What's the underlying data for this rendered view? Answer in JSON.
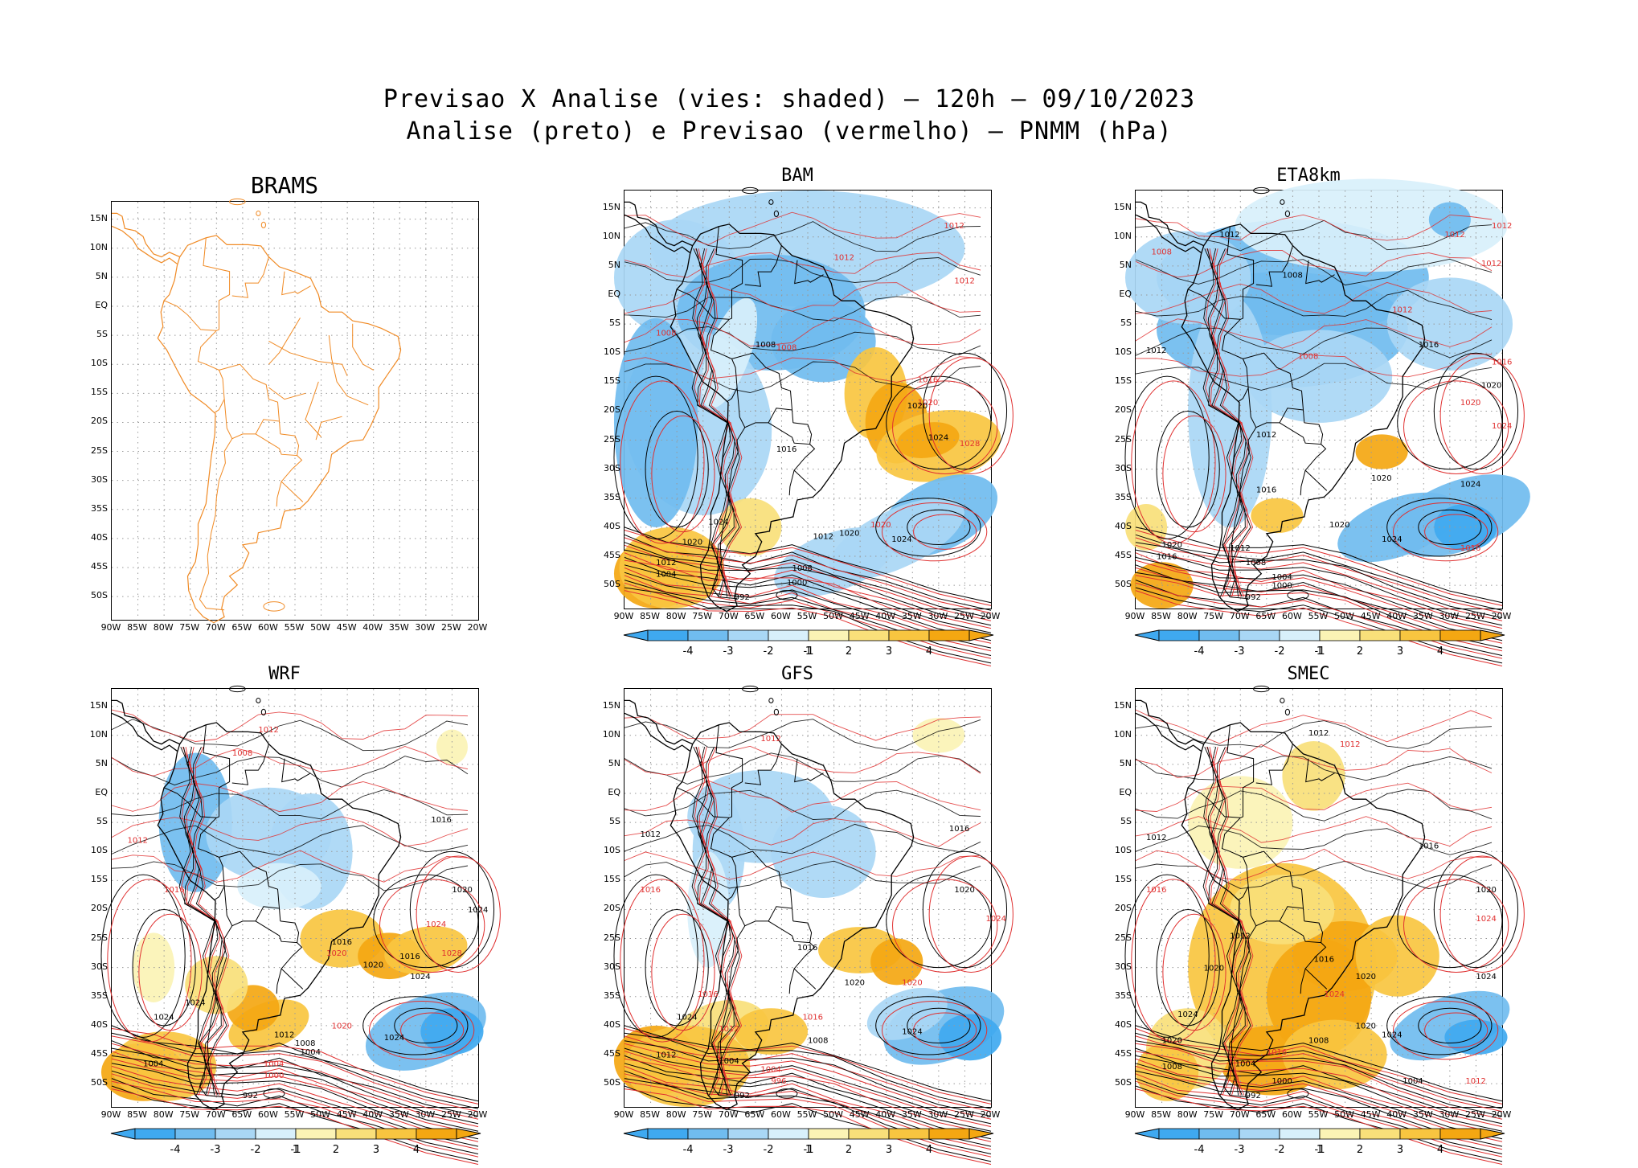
{
  "title_line1": "Previsao X Analise (vies: shaded) – 120h – 09/10/2023",
  "title_line2": "Analise (preto) e Previsao (vermelho) – PNMM (hPa)",
  "lat_labels": [
    "15N",
    "10N",
    "5N",
    "EQ",
    "5S",
    "10S",
    "15S",
    "20S",
    "25S",
    "30S",
    "35S",
    "40S",
    "45S",
    "50S"
  ],
  "lon_labels": [
    "90W",
    "85W",
    "80W",
    "75W",
    "70W",
    "65W",
    "60W",
    "55W",
    "50W",
    "45W",
    "40W",
    "35W",
    "30W",
    "25W",
    "20W"
  ],
  "colorbar_labels": [
    "-4",
    "-3",
    "-2",
    "-1",
    "1",
    "2",
    "3",
    "4"
  ],
  "colors": {
    "neg4": "#3fa9f0",
    "neg3": "#70bcef",
    "neg2": "#a9d7f5",
    "neg1": "#d8f0fb",
    "pos1": "#fbf3b5",
    "pos2": "#f9e07a",
    "pos3": "#f8c540",
    "pos4": "#f4a712",
    "analysis_contour": "#000000",
    "forecast_contour": "#e03030",
    "coast_brams": "#f08a24"
  },
  "panels": [
    {
      "name": "BRAMS",
      "bias": "none",
      "labels": []
    },
    {
      "name": "BAM",
      "bias": "mixed",
      "labels": [
        {
          "t": "1012",
          "c": "r",
          "lon": -29,
          "lat": 11.5
        },
        {
          "t": "1012",
          "c": "r",
          "lon": -50,
          "lat": 6
        },
        {
          "t": "1012",
          "c": "r",
          "lon": -27,
          "lat": 2
        },
        {
          "t": "1008",
          "c": "r",
          "lon": -61,
          "lat": -9.5
        },
        {
          "t": "1016",
          "c": "r",
          "lon": -34,
          "lat": -15
        },
        {
          "t": "1020",
          "c": "r",
          "lon": -34,
          "lat": -19
        },
        {
          "t": "1020",
          "c": "k",
          "lon": -36,
          "lat": -19.5
        },
        {
          "t": "1024",
          "c": "k",
          "lon": -32,
          "lat": -25
        },
        {
          "t": "1028",
          "c": "r",
          "lon": -26,
          "lat": -26
        },
        {
          "t": "1020",
          "c": "r",
          "lon": -43,
          "lat": -40
        },
        {
          "t": "1024",
          "c": "k",
          "lon": -39,
          "lat": -42.5
        },
        {
          "t": "1020",
          "c": "k",
          "lon": -49,
          "lat": -41.5
        },
        {
          "t": "1012",
          "c": "k",
          "lon": -54,
          "lat": -42
        },
        {
          "t": "1008",
          "c": "k",
          "lon": -58,
          "lat": -47.5
        },
        {
          "t": "1000",
          "c": "k",
          "lon": -59,
          "lat": -50
        },
        {
          "t": "992",
          "c": "k",
          "lon": -69,
          "lat": -52.5
        },
        {
          "t": "1024",
          "c": "k",
          "lon": -74,
          "lat": -39.5
        },
        {
          "t": "1020",
          "c": "k",
          "lon": -79,
          "lat": -43
        },
        {
          "t": "1012",
          "c": "k",
          "lon": -84,
          "lat": -46.5
        },
        {
          "t": "1004",
          "c": "k",
          "lon": -84,
          "lat": -48.5
        },
        {
          "t": "1016",
          "c": "k",
          "lon": -61,
          "lat": -27
        },
        {
          "t": "1008",
          "c": "r",
          "lon": -84,
          "lat": -7
        },
        {
          "t": "1008",
          "c": "k",
          "lon": -65,
          "lat": -9
        }
      ]
    },
    {
      "name": "ETA8km",
      "bias": "negative",
      "labels": [
        {
          "t": "1012",
          "c": "r",
          "lon": -31,
          "lat": 10
        },
        {
          "t": "1012",
          "c": "r",
          "lon": -22,
          "lat": 11.5
        },
        {
          "t": "1008",
          "c": "r",
          "lon": -87,
          "lat": 7
        },
        {
          "t": "1012",
          "c": "r",
          "lon": -24,
          "lat": 5
        },
        {
          "t": "1012",
          "c": "r",
          "lon": -41,
          "lat": -3
        },
        {
          "t": "1016",
          "c": "k",
          "lon": -36,
          "lat": -9
        },
        {
          "t": "1016",
          "c": "r",
          "lon": -22,
          "lat": -12
        },
        {
          "t": "1020",
          "c": "k",
          "lon": -24,
          "lat": -16
        },
        {
          "t": "1020",
          "c": "r",
          "lon": -28,
          "lat": -19
        },
        {
          "t": "1024",
          "c": "r",
          "lon": -22,
          "lat": -23
        },
        {
          "t": "1020",
          "c": "k",
          "lon": -45,
          "lat": -32
        },
        {
          "t": "1024",
          "c": "k",
          "lon": -28,
          "lat": -33
        },
        {
          "t": "1020",
          "c": "k",
          "lon": -53,
          "lat": -40
        },
        {
          "t": "1024",
          "c": "k",
          "lon": -43,
          "lat": -42.5
        },
        {
          "t": "1016",
          "c": "r",
          "lon": -28,
          "lat": -44
        },
        {
          "t": "1012",
          "c": "k",
          "lon": -88,
          "lat": -10
        },
        {
          "t": "1012",
          "c": "k",
          "lon": -67,
          "lat": -24.5
        },
        {
          "t": "1016",
          "c": "k",
          "lon": -67,
          "lat": -34
        },
        {
          "t": "1012",
          "c": "k",
          "lon": -72,
          "lat": -44
        },
        {
          "t": "1008",
          "c": "k",
          "lon": -69,
          "lat": -46.5
        },
        {
          "t": "1004",
          "c": "k",
          "lon": -64,
          "lat": -49
        },
        {
          "t": "1000",
          "c": "k",
          "lon": -64,
          "lat": -50.5
        },
        {
          "t": "992",
          "c": "k",
          "lon": -69,
          "lat": -52.5
        },
        {
          "t": "1020",
          "c": "k",
          "lon": -85,
          "lat": -43.5
        },
        {
          "t": "1016",
          "c": "k",
          "lon": -86,
          "lat": -45.5
        },
        {
          "t": "1012",
          "c": "k",
          "lon": -74,
          "lat": 10
        },
        {
          "t": "1008",
          "c": "k",
          "lon": -62,
          "lat": 3
        },
        {
          "t": "1008",
          "c": "r",
          "lon": -59,
          "lat": -11
        }
      ]
    },
    {
      "name": "WRF",
      "bias": "mixed",
      "labels": [
        {
          "t": "1012",
          "c": "r",
          "lon": -62,
          "lat": 10.5
        },
        {
          "t": "1008",
          "c": "r",
          "lon": -67,
          "lat": 6.5
        },
        {
          "t": "1016",
          "c": "k",
          "lon": -29,
          "lat": -5
        },
        {
          "t": "1012",
          "c": "r",
          "lon": -87,
          "lat": -8.5
        },
        {
          "t": "1016",
          "c": "r",
          "lon": -80,
          "lat": -17
        },
        {
          "t": "1020",
          "c": "k",
          "lon": -25,
          "lat": -17
        },
        {
          "t": "1024",
          "c": "r",
          "lon": -30,
          "lat": -23
        },
        {
          "t": "1024",
          "c": "k",
          "lon": -22,
          "lat": -20.5
        },
        {
          "t": "1028",
          "c": "r",
          "lon": -27,
          "lat": -28
        },
        {
          "t": "1020",
          "c": "r",
          "lon": -49,
          "lat": -28
        },
        {
          "t": "1016",
          "c": "k",
          "lon": -35,
          "lat": -28.5
        },
        {
          "t": "1020",
          "c": "k",
          "lon": -42,
          "lat": -30
        },
        {
          "t": "1024",
          "c": "k",
          "lon": -33,
          "lat": -32
        },
        {
          "t": "1020",
          "c": "r",
          "lon": -48,
          "lat": -40.5
        },
        {
          "t": "1024",
          "c": "k",
          "lon": -38,
          "lat": -42.5
        },
        {
          "t": "1012",
          "c": "k",
          "lon": -59,
          "lat": -42
        },
        {
          "t": "1008",
          "c": "k",
          "lon": -55,
          "lat": -43.5
        },
        {
          "t": "1004",
          "c": "k",
          "lon": -54,
          "lat": -45
        },
        {
          "t": "1004",
          "c": "r",
          "lon": -61,
          "lat": -47
        },
        {
          "t": "1000",
          "c": "r",
          "lon": -61,
          "lat": -49
        },
        {
          "t": "992",
          "c": "k",
          "lon": -65,
          "lat": -52.5
        },
        {
          "t": "1024",
          "c": "k",
          "lon": -76,
          "lat": -36.5
        },
        {
          "t": "1024",
          "c": "k",
          "lon": -82,
          "lat": -39
        },
        {
          "t": "1004",
          "c": "k",
          "lon": -84,
          "lat": -47
        },
        {
          "t": "1016",
          "c": "k",
          "lon": -48,
          "lat": -26
        }
      ]
    },
    {
      "name": "GFS",
      "bias": "mixed",
      "labels": [
        {
          "t": "1012",
          "c": "r",
          "lon": -64,
          "lat": 9
        },
        {
          "t": "1016",
          "c": "k",
          "lon": -28,
          "lat": -6.5
        },
        {
          "t": "1012",
          "c": "k",
          "lon": -87,
          "lat": -7.5
        },
        {
          "t": "1016",
          "c": "r",
          "lon": -87,
          "lat": -17
        },
        {
          "t": "1020",
          "c": "k",
          "lon": -27,
          "lat": -17
        },
        {
          "t": "1024",
          "c": "r",
          "lon": -21,
          "lat": -22
        },
        {
          "t": "1020",
          "c": "r",
          "lon": -37,
          "lat": -33
        },
        {
          "t": "1020",
          "c": "k",
          "lon": -48,
          "lat": -33
        },
        {
          "t": "1016",
          "c": "r",
          "lon": -56,
          "lat": -39
        },
        {
          "t": "1016",
          "c": "r",
          "lon": -76,
          "lat": -35
        },
        {
          "t": "1012",
          "c": "r",
          "lon": -72,
          "lat": -41
        },
        {
          "t": "1008",
          "c": "k",
          "lon": -55,
          "lat": -43
        },
        {
          "t": "1024",
          "c": "k",
          "lon": -37,
          "lat": -41.5
        },
        {
          "t": "1004",
          "c": "k",
          "lon": -72,
          "lat": -46.5
        },
        {
          "t": "1004",
          "c": "r",
          "lon": -64,
          "lat": -48
        },
        {
          "t": "996",
          "c": "r",
          "lon": -62,
          "lat": -50
        },
        {
          "t": "992",
          "c": "k",
          "lon": -69,
          "lat": -52.5
        },
        {
          "t": "1012",
          "c": "k",
          "lon": -84,
          "lat": -45.5
        },
        {
          "t": "1016",
          "c": "k",
          "lon": -57,
          "lat": -27
        },
        {
          "t": "1024",
          "c": "k",
          "lon": -80,
          "lat": -39
        }
      ]
    },
    {
      "name": "SMEC",
      "bias": "positive",
      "labels": [
        {
          "t": "1012",
          "c": "k",
          "lon": -57,
          "lat": 10
        },
        {
          "t": "1012",
          "c": "r",
          "lon": -51,
          "lat": 8
        },
        {
          "t": "1016",
          "c": "k",
          "lon": -36,
          "lat": -9.5
        },
        {
          "t": "1012",
          "c": "k",
          "lon": -88,
          "lat": -8
        },
        {
          "t": "1016",
          "c": "r",
          "lon": -88,
          "lat": -17
        },
        {
          "t": "1020",
          "c": "k",
          "lon": -25,
          "lat": -17
        },
        {
          "t": "1024",
          "c": "r",
          "lon": -25,
          "lat": -22
        },
        {
          "t": "1020",
          "c": "k",
          "lon": -48,
          "lat": -32
        },
        {
          "t": "1024",
          "c": "k",
          "lon": -25,
          "lat": -32
        },
        {
          "t": "1020",
          "c": "k",
          "lon": -48,
          "lat": -40.5
        },
        {
          "t": "1024",
          "c": "k",
          "lon": -43,
          "lat": -42
        },
        {
          "t": "1016",
          "c": "k",
          "lon": -56,
          "lat": -29
        },
        {
          "t": "1024",
          "c": "r",
          "lon": -54,
          "lat": -35
        },
        {
          "t": "1008",
          "c": "k",
          "lon": -57,
          "lat": -43
        },
        {
          "t": "1016",
          "c": "r",
          "lon": -65,
          "lat": -45
        },
        {
          "t": "1004",
          "c": "k",
          "lon": -71,
          "lat": -47
        },
        {
          "t": "1000",
          "c": "k",
          "lon": -64,
          "lat": -50
        },
        {
          "t": "992",
          "c": "k",
          "lon": -69,
          "lat": -52.5
        },
        {
          "t": "1004",
          "c": "k",
          "lon": -39,
          "lat": -50
        },
        {
          "t": "1012",
          "c": "r",
          "lon": -27,
          "lat": -50
        },
        {
          "t": "1020",
          "c": "k",
          "lon": -85,
          "lat": -43
        },
        {
          "t": "1008",
          "c": "k",
          "lon": -85,
          "lat": -47.5
        },
        {
          "t": "1024",
          "c": "k",
          "lon": -82,
          "lat": -38.5
        },
        {
          "t": "1020",
          "c": "k",
          "lon": -77,
          "lat": -30.5
        },
        {
          "t": "1012",
          "c": "k",
          "lon": -72,
          "lat": -25
        }
      ]
    }
  ]
}
